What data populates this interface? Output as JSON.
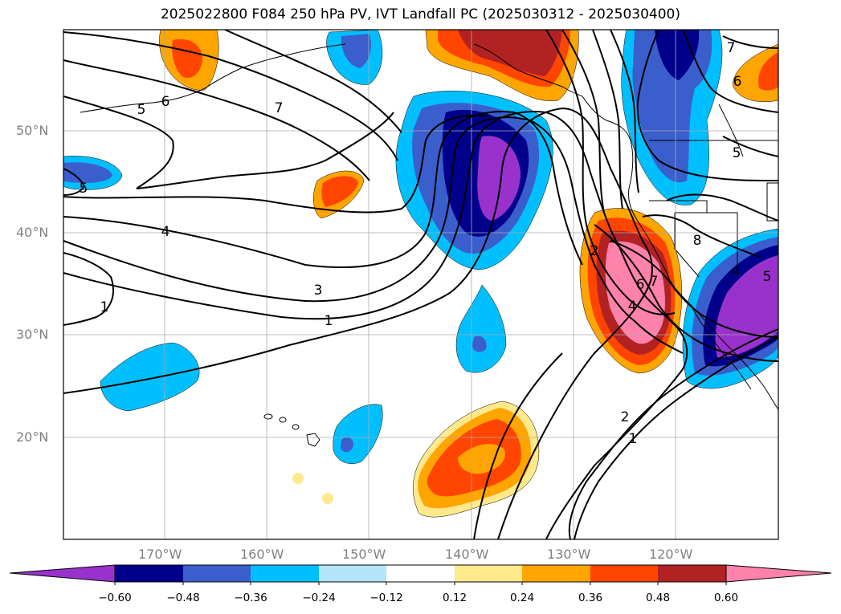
{
  "title": "2025022800 F084 250 hPa PV, IVT Landfall PC (2025030312 - 2025030400)",
  "lat_labels": [
    "50°N",
    "40°N",
    "30°N",
    "20°N"
  ],
  "lon_labels": [
    "170°W",
    "160°W",
    "150°W",
    "140°W",
    "130°W",
    "120°W"
  ],
  "contour_labels": [
    "5",
    "6",
    "7",
    "4",
    "3",
    "1",
    "5",
    "1",
    "2",
    "7",
    "6",
    "4",
    "8",
    "6",
    "5",
    "7",
    "2",
    "1",
    "5",
    "4"
  ],
  "colorbar": {
    "ticks": [
      "−0.60",
      "−0.48",
      "−0.36",
      "−0.24",
      "−0.12",
      "0.12",
      "0.24",
      "0.36",
      "0.48",
      "0.60"
    ],
    "colors": [
      "#9932cc",
      "#00008b",
      "#3a5fcd",
      "#00bfff",
      "#b2e5fa",
      "#ffffff",
      "#ffe98c",
      "#ffa500",
      "#ff4500",
      "#b22222",
      "#ff82ab"
    ]
  }
}
